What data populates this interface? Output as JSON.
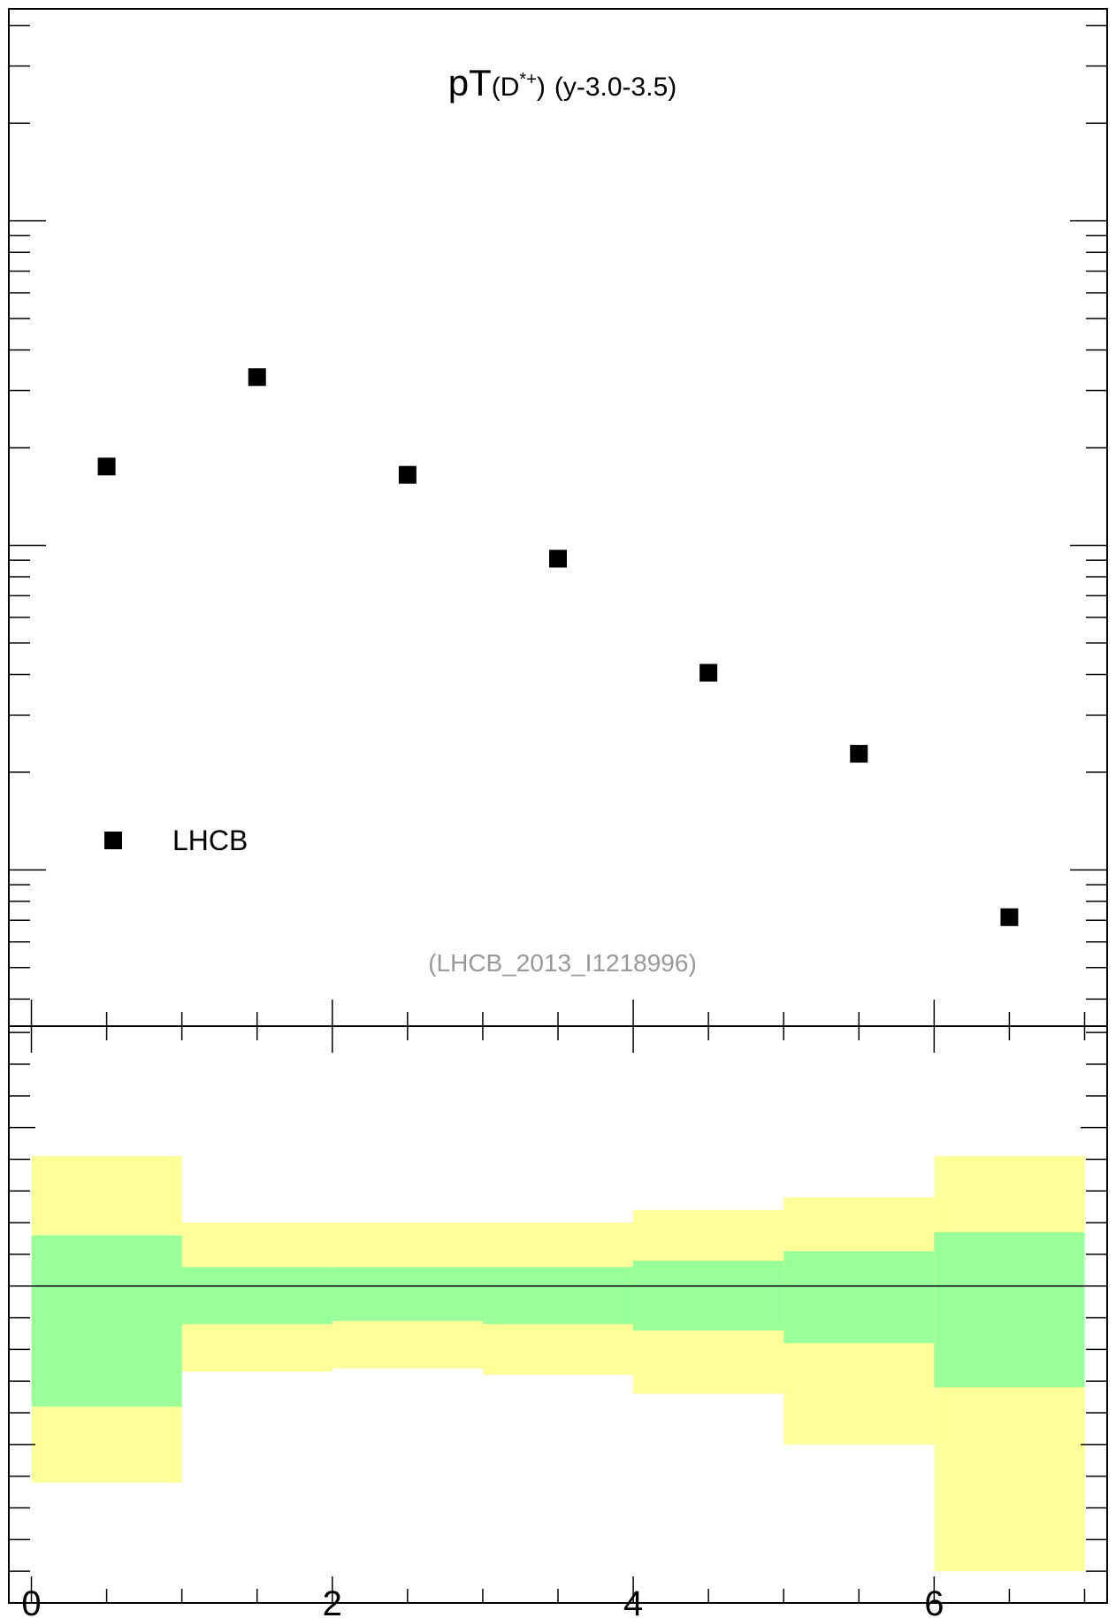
{
  "chart_data": [
    {
      "type": "scatter",
      "title_main": "pT",
      "title_sub": "(D*+)",
      "title_sub_base": "(D",
      "title_sub_sup": "*+",
      "title_sub_close": ")",
      "title_rapidity": "(y-3.0-3.5)",
      "reference": "(LHCB_2013_I1218996)",
      "series": [
        {
          "name": "LHCB",
          "marker": "square",
          "color": "#000000",
          "x": [
            0.5,
            1.5,
            2.5,
            3.5,
            4.5,
            5.5,
            6.5
          ],
          "y": [
            1.75,
            3.3,
            1.65,
            0.91,
            0.405,
            0.228,
            0.0715
          ]
        }
      ],
      "xlim": [
        -0.15,
        7.15
      ],
      "ylog": true,
      "ylim": [
        0.033,
        45
      ],
      "grid": false,
      "legend": "bottom-left"
    },
    {
      "type": "area",
      "description_key": "ratio-bands",
      "bin_edges": [
        0,
        1,
        2,
        3,
        4,
        5,
        6,
        7
      ],
      "band_yellow_upper": [
        1.41,
        1.2,
        1.2,
        1.2,
        1.24,
        1.28,
        1.41
      ],
      "band_yellow_lower": [
        0.38,
        0.73,
        0.74,
        0.72,
        0.66,
        0.5,
        0.1
      ],
      "band_green_upper": [
        1.16,
        1.06,
        1.06,
        1.06,
        1.08,
        1.11,
        1.17
      ],
      "band_green_lower": [
        0.62,
        0.88,
        0.89,
        0.88,
        0.86,
        0.82,
        0.68
      ],
      "reference_line": 1.0,
      "colors": {
        "yellow": "#ffff99",
        "green": "#99ff99"
      },
      "xlim": [
        -0.15,
        7.15
      ],
      "ylim": [
        0.0,
        1.82
      ],
      "x_ticks": [
        0,
        2,
        4,
        6
      ],
      "x_tick_labels": [
        "0",
        "2",
        "4",
        "6"
      ]
    }
  ]
}
